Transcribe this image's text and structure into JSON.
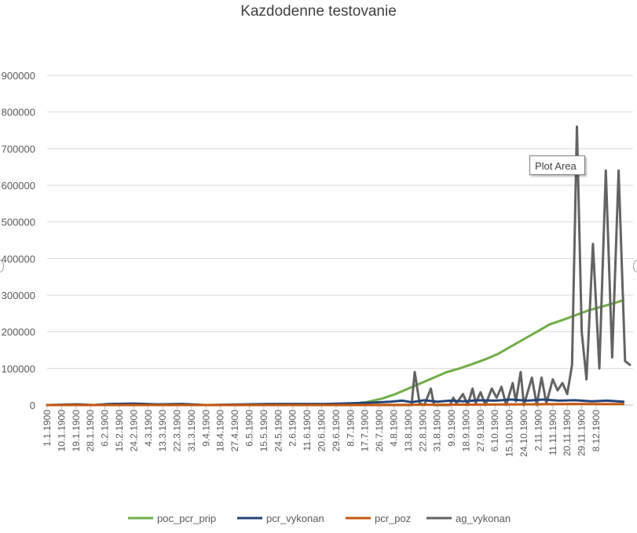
{
  "chart_data": {
    "type": "line",
    "title": "Kazdodenne testovanie",
    "xlabel": "",
    "ylabel": "",
    "ylim": [
      0,
      900000
    ],
    "yticks": [
      "0",
      "100000",
      "200000",
      "300000",
      "400000",
      "500000",
      "600000",
      "700000",
      "800000",
      "900000"
    ],
    "ytick_values": [
      0,
      100000,
      200000,
      300000,
      400000,
      500000,
      600000,
      700000,
      800000,
      900000
    ],
    "grid": true,
    "legend_position": "bottom",
    "xtick_labels": [
      "1.1.1900",
      "10.1.1900",
      "19.1.1900",
      "28.1.1900",
      "6.2.1900",
      "15.2.1900",
      "24.2.1900",
      "4.3.1900",
      "13.3.1900",
      "22.3.1900",
      "31.3.1900",
      "9.4.1900",
      "18.4.1900",
      "27.4.1900",
      "6.5.1900",
      "15.5.1900",
      "24.5.1900",
      "2.6.1900",
      "11.6.1900",
      "20.6.1900",
      "29.6.1900",
      "8.7.1900",
      "17.7.1900",
      "26.7.1900",
      "4.8.1900",
      "13.8.1900",
      "22.8.1900",
      "31.8.1900",
      "9.9.1900",
      "18.9.1900",
      "27.9.1900",
      "6.10.1900",
      "15.10.1900",
      "24.10.1900",
      "2.11.1900",
      "11.11.1900",
      "20.11.1900",
      "29.11.1900",
      "8.12.1900"
    ],
    "x_day_range": [
      1,
      366
    ],
    "series": [
      {
        "name": "poc_pcr_prip",
        "color": "#70ad47",
        "points": [
          [
            1,
            0
          ],
          [
            180,
            0
          ],
          [
            190,
            3000
          ],
          [
            200,
            8000
          ],
          [
            210,
            18000
          ],
          [
            218,
            30000
          ],
          [
            226,
            45000
          ],
          [
            234,
            60000
          ],
          [
            242,
            75000
          ],
          [
            250,
            90000
          ],
          [
            258,
            100000
          ],
          [
            266,
            112000
          ],
          [
            274,
            125000
          ],
          [
            282,
            140000
          ],
          [
            290,
            160000
          ],
          [
            298,
            180000
          ],
          [
            306,
            200000
          ],
          [
            314,
            220000
          ],
          [
            322,
            232000
          ],
          [
            330,
            245000
          ],
          [
            338,
            258000
          ],
          [
            346,
            268000
          ],
          [
            354,
            278000
          ],
          [
            360,
            286000
          ]
        ]
      },
      {
        "name": "pcr_vykonan",
        "color": "#264478",
        "points": [
          [
            1,
            0
          ],
          [
            20,
            2000
          ],
          [
            30,
            0
          ],
          [
            40,
            3000
          ],
          [
            55,
            4000
          ],
          [
            70,
            2000
          ],
          [
            85,
            3000
          ],
          [
            100,
            0
          ],
          [
            140,
            3000
          ],
          [
            175,
            3000
          ],
          [
            190,
            5000
          ],
          [
            205,
            7000
          ],
          [
            215,
            9000
          ],
          [
            222,
            12000
          ],
          [
            228,
            8000
          ],
          [
            236,
            13000
          ],
          [
            244,
            9000
          ],
          [
            252,
            12000
          ],
          [
            260,
            10000
          ],
          [
            270,
            13000
          ],
          [
            280,
            12000
          ],
          [
            290,
            15000
          ],
          [
            300,
            12000
          ],
          [
            310,
            15000
          ],
          [
            320,
            12000
          ],
          [
            330,
            13000
          ],
          [
            340,
            10000
          ],
          [
            350,
            12000
          ],
          [
            360,
            9000
          ]
        ]
      },
      {
        "name": "pcr_poz",
        "color": "#c55a11",
        "points": [
          [
            1,
            0
          ],
          [
            180,
            0
          ],
          [
            220,
            500
          ],
          [
            260,
            1000
          ],
          [
            300,
            2000
          ],
          [
            330,
            3000
          ],
          [
            360,
            2500
          ]
        ]
      },
      {
        "name": "ag_vykonan",
        "color": "#636363",
        "points": [
          [
            1,
            0
          ],
          [
            228,
            0
          ],
          [
            230,
            90000
          ],
          [
            233,
            5000
          ],
          [
            236,
            0
          ],
          [
            240,
            45000
          ],
          [
            242,
            0
          ],
          [
            252,
            0
          ],
          [
            254,
            20000
          ],
          [
            256,
            5000
          ],
          [
            260,
            30000
          ],
          [
            263,
            0
          ],
          [
            266,
            45000
          ],
          [
            268,
            5000
          ],
          [
            271,
            35000
          ],
          [
            274,
            0
          ],
          [
            278,
            45000
          ],
          [
            281,
            20000
          ],
          [
            284,
            50000
          ],
          [
            287,
            0
          ],
          [
            291,
            60000
          ],
          [
            293,
            10000
          ],
          [
            296,
            90000
          ],
          [
            298,
            0
          ],
          [
            303,
            75000
          ],
          [
            306,
            0
          ],
          [
            309,
            75000
          ],
          [
            312,
            5000
          ],
          [
            316,
            70000
          ],
          [
            319,
            40000
          ],
          [
            322,
            60000
          ],
          [
            325,
            30000
          ],
          [
            328,
            110000
          ],
          [
            331,
            760000
          ],
          [
            334,
            200000
          ],
          [
            337,
            70000
          ],
          [
            341,
            440000
          ],
          [
            345,
            100000
          ],
          [
            349,
            640000
          ],
          [
            353,
            130000
          ],
          [
            357,
            640000
          ],
          [
            361,
            120000
          ],
          [
            364,
            110000
          ]
        ]
      }
    ]
  },
  "tooltip": {
    "text": "Plot Area"
  }
}
